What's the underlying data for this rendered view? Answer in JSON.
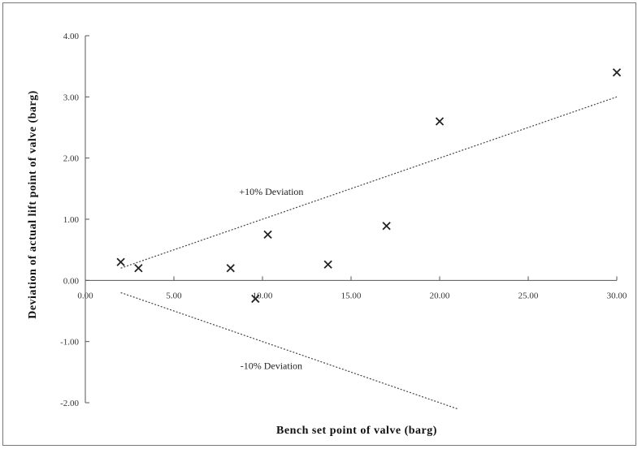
{
  "chart_data": {
    "type": "scatter",
    "title": "",
    "xlabel": "Bench set point of valve (barg)",
    "ylabel": "Deviation of actual lift point of valve (barg)",
    "xlim": [
      0,
      30
    ],
    "ylim": [
      -2,
      4
    ],
    "x_ticks": [
      "0.00",
      "5.00",
      "10.00",
      "15.00",
      "20.00",
      "25.00",
      "30.00"
    ],
    "y_ticks": [
      "4.00",
      "3.00",
      "2.00",
      "1.00",
      "0.00",
      "-1.00",
      "-2.00"
    ],
    "grid": false,
    "legend": "none",
    "series": [
      {
        "marker": "x",
        "color": "#222222",
        "points": [
          {
            "x": 2.0,
            "y": 0.3
          },
          {
            "x": 3.0,
            "y": 0.2
          },
          {
            "x": 8.2,
            "y": 0.2
          },
          {
            "x": 9.6,
            "y": -0.3
          },
          {
            "x": 10.3,
            "y": 0.75
          },
          {
            "x": 13.7,
            "y": 0.26
          },
          {
            "x": 17.0,
            "y": 0.89
          },
          {
            "x": 20.0,
            "y": 2.6
          },
          {
            "x": 30.0,
            "y": 3.4
          }
        ]
      }
    ],
    "reference_lines": [
      {
        "label": "+10% Deviation",
        "x": [
          2.0,
          30.0
        ],
        "y": [
          0.2,
          3.0
        ],
        "style": "dotted",
        "color": "#444444"
      },
      {
        "label": "-10% Deviation",
        "x": [
          2.0,
          21.0
        ],
        "y": [
          -0.2,
          -2.1
        ],
        "style": "dotted",
        "color": "#444444"
      }
    ],
    "annotations": [
      {
        "text": "+10% Deviation",
        "at_x": 10.5,
        "at_y": 1.4
      },
      {
        "text": "-10% Deviation",
        "at_x": 10.5,
        "at_y": -1.45
      }
    ]
  }
}
